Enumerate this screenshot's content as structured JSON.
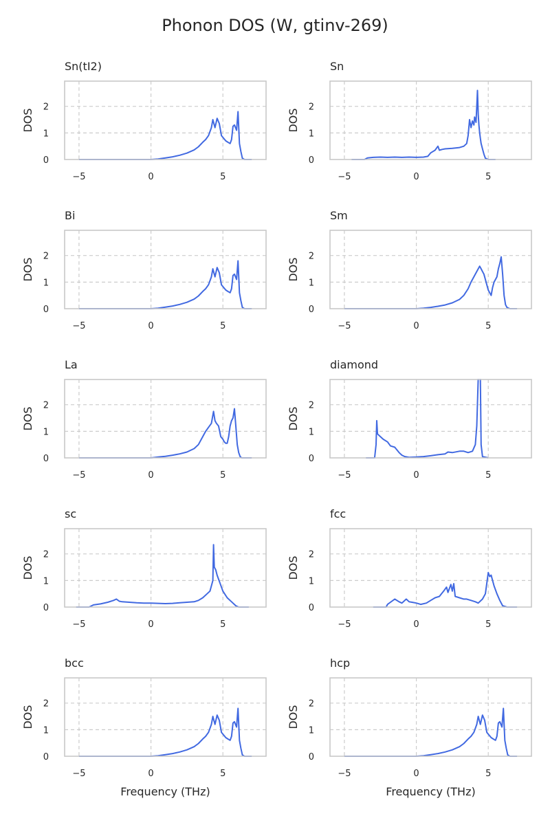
{
  "figure": {
    "title": "Phonon DOS (W, gtinv-269)"
  },
  "chart_data": [
    {
      "type": "line",
      "title": "Sn(tI2)",
      "xlabel": "",
      "ylabel": "DOS",
      "xlim": [
        -6,
        8
      ],
      "ylim": [
        0,
        2.95
      ],
      "xticks": [
        -5,
        0,
        5
      ],
      "yticks": [
        0,
        1,
        2
      ],
      "grid": true,
      "series": [
        {
          "x": [
            -5,
            0,
            0.5,
            1,
            1.5,
            2,
            2.5,
            3,
            3.3,
            3.6,
            3.8,
            4.0,
            4.2,
            4.3,
            4.45,
            4.6,
            4.75,
            4.9,
            5.05,
            5.2,
            5.35,
            5.5,
            5.6,
            5.7,
            5.8,
            5.95,
            6.05,
            6.15,
            6.25,
            6.35,
            6.5,
            7
          ],
          "y": [
            0,
            0,
            0.02,
            0.06,
            0.1,
            0.16,
            0.24,
            0.36,
            0.48,
            0.65,
            0.75,
            0.9,
            1.2,
            1.5,
            1.2,
            1.55,
            1.35,
            0.9,
            0.8,
            0.7,
            0.65,
            0.6,
            0.75,
            1.25,
            1.3,
            1.1,
            1.8,
            0.6,
            0.3,
            0.05,
            0,
            0
          ]
        }
      ]
    },
    {
      "type": "line",
      "title": "Sn",
      "xlabel": "",
      "ylabel": "DOS",
      "xlim": [
        -6,
        8
      ],
      "ylim": [
        0,
        2.95
      ],
      "xticks": [
        -5,
        0,
        5
      ],
      "yticks": [
        0,
        1,
        2
      ],
      "grid": true,
      "series": [
        {
          "x": [
            -4.5,
            -3.6,
            -3.4,
            -3.0,
            -2.5,
            -2.0,
            -1.5,
            -1.0,
            -0.5,
            0,
            0.5,
            0.8,
            1.0,
            1.3,
            1.5,
            1.6,
            1.8,
            2.0,
            2.5,
            3.0,
            3.3,
            3.5,
            3.6,
            3.7,
            3.8,
            3.9,
            4.0,
            4.05,
            4.1,
            4.15,
            4.2,
            4.25,
            4.3,
            4.35,
            4.4,
            4.45,
            4.5,
            4.6,
            4.7,
            4.8,
            5.0,
            5.5
          ],
          "y": [
            0,
            0,
            0.06,
            0.08,
            0.09,
            0.08,
            0.09,
            0.08,
            0.09,
            0.08,
            0.09,
            0.12,
            0.25,
            0.35,
            0.5,
            0.35,
            0.38,
            0.4,
            0.42,
            0.45,
            0.5,
            0.6,
            0.9,
            1.5,
            1.2,
            1.45,
            1.3,
            1.6,
            1.5,
            1.4,
            2.0,
            2.6,
            1.7,
            1.3,
            1.0,
            0.8,
            0.6,
            0.4,
            0.2,
            0.05,
            0,
            0
          ]
        }
      ]
    },
    {
      "type": "line",
      "title": "Bi",
      "xlabel": "",
      "ylabel": "DOS",
      "xlim": [
        -6,
        8
      ],
      "ylim": [
        0,
        2.95
      ],
      "xticks": [
        -5,
        0,
        5
      ],
      "yticks": [
        0,
        1,
        2
      ],
      "grid": true,
      "series": [
        {
          "x": [
            -5,
            0,
            0.5,
            1,
            1.5,
            2,
            2.5,
            3,
            3.3,
            3.6,
            3.8,
            4.0,
            4.2,
            4.3,
            4.45,
            4.6,
            4.75,
            4.9,
            5.05,
            5.2,
            5.35,
            5.5,
            5.6,
            5.7,
            5.8,
            5.95,
            6.05,
            6.15,
            6.25,
            6.35,
            6.5,
            7
          ],
          "y": [
            0,
            0,
            0.02,
            0.06,
            0.1,
            0.16,
            0.24,
            0.36,
            0.48,
            0.65,
            0.75,
            0.9,
            1.2,
            1.5,
            1.2,
            1.55,
            1.35,
            0.9,
            0.8,
            0.7,
            0.65,
            0.6,
            0.75,
            1.25,
            1.3,
            1.1,
            1.8,
            0.6,
            0.3,
            0.05,
            0,
            0
          ]
        }
      ]
    },
    {
      "type": "line",
      "title": "Sm",
      "xlabel": "",
      "ylabel": "DOS",
      "xlim": [
        -6,
        8
      ],
      "ylim": [
        0,
        2.95
      ],
      "xticks": [
        -5,
        0,
        5
      ],
      "yticks": [
        0,
        1,
        2
      ],
      "grid": true,
      "series": [
        {
          "x": [
            -5,
            0,
            0.5,
            1,
            1.5,
            2,
            2.5,
            3,
            3.3,
            3.6,
            3.8,
            4.0,
            4.2,
            4.4,
            4.5,
            4.6,
            4.7,
            4.8,
            4.9,
            5.0,
            5.1,
            5.2,
            5.3,
            5.4,
            5.5,
            5.6,
            5.7,
            5.8,
            5.9,
            6.0,
            6.1,
            6.2,
            6.3,
            6.5,
            7
          ],
          "y": [
            0,
            0,
            0.02,
            0.05,
            0.09,
            0.14,
            0.22,
            0.35,
            0.5,
            0.75,
            1.0,
            1.2,
            1.4,
            1.6,
            1.5,
            1.4,
            1.3,
            1.1,
            0.9,
            0.7,
            0.6,
            0.5,
            0.8,
            1.0,
            1.1,
            1.2,
            1.5,
            1.7,
            1.95,
            1.3,
            0.5,
            0.15,
            0.05,
            0,
            0
          ]
        }
      ]
    },
    {
      "type": "line",
      "title": "La",
      "xlabel": "",
      "ylabel": "DOS",
      "xlim": [
        -6,
        8
      ],
      "ylim": [
        0,
        2.95
      ],
      "xticks": [
        -5,
        0,
        5
      ],
      "yticks": [
        0,
        1,
        2
      ],
      "grid": true,
      "series": [
        {
          "x": [
            -5,
            0,
            0.5,
            1,
            1.5,
            2,
            2.5,
            3,
            3.3,
            3.6,
            3.8,
            4.0,
            4.2,
            4.35,
            4.45,
            4.55,
            4.7,
            4.85,
            5.0,
            5.1,
            5.2,
            5.3,
            5.4,
            5.5,
            5.6,
            5.7,
            5.8,
            5.9,
            6.0,
            6.1,
            6.2,
            6.3,
            6.5,
            7
          ],
          "y": [
            0,
            0,
            0.03,
            0.06,
            0.1,
            0.15,
            0.22,
            0.35,
            0.5,
            0.8,
            1.0,
            1.15,
            1.3,
            1.75,
            1.4,
            1.3,
            1.2,
            0.8,
            0.7,
            0.6,
            0.55,
            0.55,
            0.8,
            1.2,
            1.4,
            1.5,
            1.85,
            1.2,
            0.5,
            0.2,
            0.05,
            0,
            0,
            0
          ]
        }
      ]
    },
    {
      "type": "line",
      "title": "diamond",
      "xlabel": "",
      "ylabel": "DOS",
      "xlim": [
        -6,
        8
      ],
      "ylim": [
        0,
        2.95
      ],
      "xticks": [
        -5,
        0,
        5
      ],
      "yticks": [
        0,
        1,
        2
      ],
      "grid": true,
      "series": [
        {
          "x": [
            -3.5,
            -2.9,
            -2.8,
            -2.75,
            -2.7,
            -2.5,
            -2.3,
            -2.0,
            -1.8,
            -1.5,
            -1.2,
            -1.0,
            -0.8,
            -0.5,
            0,
            0.5,
            1.0,
            1.5,
            2.0,
            2.2,
            2.5,
            3.0,
            3.3,
            3.6,
            3.9,
            4.1,
            4.2,
            4.3,
            4.35,
            4.4,
            4.45,
            4.5,
            4.6,
            5.0
          ],
          "y": [
            0,
            0,
            0.5,
            1.4,
            0.9,
            0.8,
            0.7,
            0.6,
            0.45,
            0.4,
            0.2,
            0.1,
            0.05,
            0.02,
            0.03,
            0.05,
            0.08,
            0.12,
            0.15,
            0.22,
            0.2,
            0.25,
            0.25,
            0.2,
            0.25,
            0.5,
            1.2,
            3.0,
            3.0,
            3.0,
            3.0,
            0.5,
            0.05,
            0
          ]
        }
      ]
    },
    {
      "type": "line",
      "title": "sc",
      "xlabel": "",
      "ylabel": "DOS",
      "xlim": [
        -6,
        8
      ],
      "ylim": [
        0,
        2.95
      ],
      "xticks": [
        -5,
        0,
        5
      ],
      "yticks": [
        0,
        1,
        2
      ],
      "grid": true,
      "series": [
        {
          "x": [
            -5.2,
            -4.3,
            -4.0,
            -3.5,
            -3.0,
            -2.6,
            -2.4,
            -2.2,
            -2.0,
            -1.5,
            -1.0,
            -0.5,
            0,
            0.5,
            1.0,
            1.5,
            2.0,
            2.5,
            3.0,
            3.3,
            3.6,
            3.9,
            4.1,
            4.2,
            4.3,
            4.35,
            4.4,
            4.5,
            4.6,
            4.8,
            5.0,
            5.3,
            5.6,
            5.9,
            6.1,
            6.5,
            6.8
          ],
          "y": [
            0,
            0,
            0.08,
            0.12,
            0.18,
            0.25,
            0.3,
            0.22,
            0.2,
            0.18,
            0.16,
            0.15,
            0.15,
            0.14,
            0.13,
            0.14,
            0.16,
            0.18,
            0.2,
            0.25,
            0.35,
            0.5,
            0.6,
            0.8,
            1.0,
            2.35,
            1.5,
            1.4,
            1.2,
            0.9,
            0.6,
            0.35,
            0.2,
            0.05,
            0,
            0,
            0
          ]
        }
      ]
    },
    {
      "type": "line",
      "title": "fcc",
      "xlabel": "",
      "ylabel": "DOS",
      "xlim": [
        -6,
        8
      ],
      "ylim": [
        0,
        2.95
      ],
      "xticks": [
        -5,
        0,
        5
      ],
      "yticks": [
        0,
        1,
        2
      ],
      "grid": true,
      "series": [
        {
          "x": [
            -3.0,
            -2.1,
            -2.0,
            -1.8,
            -1.5,
            -1.2,
            -1.0,
            -0.7,
            -0.5,
            -0.3,
            0,
            0.3,
            0.7,
            1.0,
            1.3,
            1.6,
            1.9,
            2.1,
            2.2,
            2.4,
            2.5,
            2.6,
            2.7,
            3.0,
            3.3,
            3.5,
            3.8,
            4.1,
            4.3,
            4.6,
            4.8,
            5.0,
            5.1,
            5.2,
            5.4,
            5.6,
            5.8,
            6.0,
            6.3,
            7.0
          ],
          "y": [
            0,
            0,
            0.1,
            0.18,
            0.3,
            0.2,
            0.15,
            0.3,
            0.2,
            0.18,
            0.15,
            0.1,
            0.15,
            0.25,
            0.35,
            0.4,
            0.6,
            0.75,
            0.55,
            0.85,
            0.6,
            0.88,
            0.4,
            0.35,
            0.3,
            0.3,
            0.25,
            0.2,
            0.15,
            0.3,
            0.5,
            1.3,
            1.15,
            1.2,
            0.8,
            0.5,
            0.25,
            0.05,
            0,
            0
          ]
        }
      ]
    },
    {
      "type": "line",
      "title": "bcc",
      "xlabel": "Frequency (THz)",
      "ylabel": "DOS",
      "xlim": [
        -6,
        8
      ],
      "ylim": [
        0,
        2.95
      ],
      "xticks": [
        -5,
        0,
        5
      ],
      "yticks": [
        0,
        1,
        2
      ],
      "grid": true,
      "series": [
        {
          "x": [
            -5,
            0,
            0.5,
            1,
            1.5,
            2,
            2.5,
            3,
            3.3,
            3.6,
            3.8,
            4.0,
            4.2,
            4.3,
            4.45,
            4.6,
            4.75,
            4.9,
            5.05,
            5.2,
            5.35,
            5.5,
            5.6,
            5.7,
            5.8,
            5.95,
            6.05,
            6.15,
            6.25,
            6.35,
            6.5,
            7
          ],
          "y": [
            0,
            0,
            0.02,
            0.06,
            0.1,
            0.16,
            0.24,
            0.36,
            0.48,
            0.65,
            0.75,
            0.9,
            1.2,
            1.5,
            1.2,
            1.55,
            1.35,
            0.9,
            0.8,
            0.7,
            0.65,
            0.6,
            0.75,
            1.25,
            1.3,
            1.1,
            1.8,
            0.6,
            0.3,
            0.05,
            0,
            0
          ]
        }
      ]
    },
    {
      "type": "line",
      "title": "hcp",
      "xlabel": "Frequency (THz)",
      "ylabel": "DOS",
      "xlim": [
        -6,
        8
      ],
      "ylim": [
        0,
        2.95
      ],
      "xticks": [
        -5,
        0,
        5
      ],
      "yticks": [
        0,
        1,
        2
      ],
      "grid": true,
      "series": [
        {
          "x": [
            -5,
            0,
            0.5,
            1,
            1.5,
            2,
            2.5,
            3,
            3.3,
            3.6,
            3.8,
            4.0,
            4.2,
            4.3,
            4.45,
            4.6,
            4.75,
            4.9,
            5.05,
            5.2,
            5.35,
            5.5,
            5.6,
            5.7,
            5.8,
            5.95,
            6.05,
            6.15,
            6.25,
            6.35,
            6.5,
            7
          ],
          "y": [
            0,
            0,
            0.02,
            0.06,
            0.1,
            0.16,
            0.24,
            0.36,
            0.48,
            0.65,
            0.75,
            0.9,
            1.2,
            1.5,
            1.2,
            1.55,
            1.35,
            0.9,
            0.8,
            0.7,
            0.65,
            0.6,
            0.75,
            1.25,
            1.3,
            1.1,
            1.8,
            0.6,
            0.3,
            0.05,
            0,
            0
          ]
        }
      ]
    }
  ],
  "colors": {
    "line": "#4169e1",
    "grid": "#cccccc",
    "frame": "#c8c8c8",
    "text": "#262626"
  }
}
